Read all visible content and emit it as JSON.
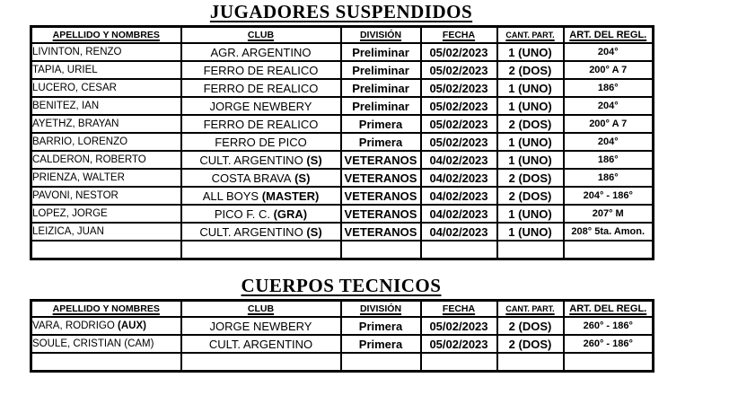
{
  "colors": {
    "text": "#000000",
    "background": "#ffffff",
    "border": "#000000"
  },
  "tables": [
    {
      "title": "JUGADORES SUSPENDIDOS",
      "headers": [
        "APELLIDO Y NOMBRES",
        "CLUB",
        "DIVISIÓN",
        "FECHA",
        "CANT. PART.",
        "ART. DEL REGL."
      ],
      "rows": [
        {
          "name": "LIVINTON, RENZO",
          "club": "AGR. ARGENTINO",
          "division": "Preliminar",
          "fecha": "05/02/2023",
          "cant_part": "1 (UNO)",
          "art_regl": "204°"
        },
        {
          "name": "TAPIA, URIEL",
          "club": "FERRO DE REALICO",
          "division": "Preliminar",
          "fecha": "05/02/2023",
          "cant_part": "2 (DOS)",
          "art_regl": "200° A 7"
        },
        {
          "name": "LUCERO, CESAR",
          "club": "FERRO DE REALICO",
          "division": "Preliminar",
          "fecha": "05/02/2023",
          "cant_part": "1 (UNO)",
          "art_regl": "186°"
        },
        {
          "name": "BENITEZ, IAN",
          "club": "JORGE NEWBERY",
          "division": "Preliminar",
          "fecha": "05/02/2023",
          "cant_part": "1 (UNO)",
          "art_regl": "204°"
        },
        {
          "name": "AYETHZ, BRAYAN",
          "club": "FERRO DE REALICO",
          "division": "Primera",
          "fecha": "05/02/2023",
          "cant_part": "2 (DOS)",
          "art_regl": "200° A 7"
        },
        {
          "name": "BARRIO, LORENZO",
          "club": "FERRO DE PICO",
          "division": "Primera",
          "fecha": "05/02/2023",
          "cant_part": "1 (UNO)",
          "art_regl": "204°"
        },
        {
          "name": "CALDERON, ROBERTO",
          "club": "CULT. ARGENTINO",
          "club_bold": "(S)",
          "division": "VETERANOS",
          "fecha": "04/02/2023",
          "cant_part": "1 (UNO)",
          "art_regl": "186°"
        },
        {
          "name": "PRIENZA, WALTER",
          "club": "COSTA BRAVA",
          "club_bold": "(S)",
          "division": "VETERANOS",
          "fecha": "04/02/2023",
          "cant_part": "2 (DOS)",
          "art_regl": "186°"
        },
        {
          "name": "PAVONI, NESTOR",
          "club": "ALL BOYS",
          "club_bold": "(MASTER)",
          "division": "VETERANOS",
          "fecha": "04/02/2023",
          "cant_part": "2 (DOS)",
          "art_regl": "204° - 186°"
        },
        {
          "name": "LOPEZ, JORGE",
          "club": "PICO F. C.",
          "club_bold": "(GRA)",
          "division": "VETERANOS",
          "fecha": "04/02/2023",
          "cant_part": "1 (UNO)",
          "art_regl": "207° M"
        },
        {
          "name": "LEIZICA, JUAN",
          "club": "CULT. ARGENTINO",
          "club_bold": "(S)",
          "division": "VETERANOS",
          "fecha": "04/02/2023",
          "cant_part": "1 (UNO)",
          "art_regl": "208° 5ta. Amon."
        },
        {
          "name": "",
          "club": "",
          "division": "",
          "fecha": "",
          "cant_part": "",
          "art_regl": ""
        }
      ]
    },
    {
      "title": "CUERPOS TECNICOS",
      "headers": [
        "APELLIDO Y NOMBRES",
        "CLUB",
        "DIVISIÓN",
        "FECHA",
        "CANT. PART.",
        "ART. DEL REGL."
      ],
      "rows": [
        {
          "name": "VARA, RODRIGO",
          "name_bold": "(AUX)",
          "club": "JORGE NEWBERY",
          "division": "Primera",
          "fecha": "05/02/2023",
          "cant_part": "2 (DOS)",
          "art_regl": "260° - 186°"
        },
        {
          "name": "SOULE, CRISTIAN (CAM)",
          "club": "CULT. ARGENTINO",
          "division": "Primera",
          "fecha": "05/02/2023",
          "cant_part": "2 (DOS)",
          "art_regl": "260° - 186°"
        },
        {
          "name": "",
          "club": "",
          "division": "",
          "fecha": "",
          "cant_part": "",
          "art_regl": ""
        }
      ]
    }
  ]
}
